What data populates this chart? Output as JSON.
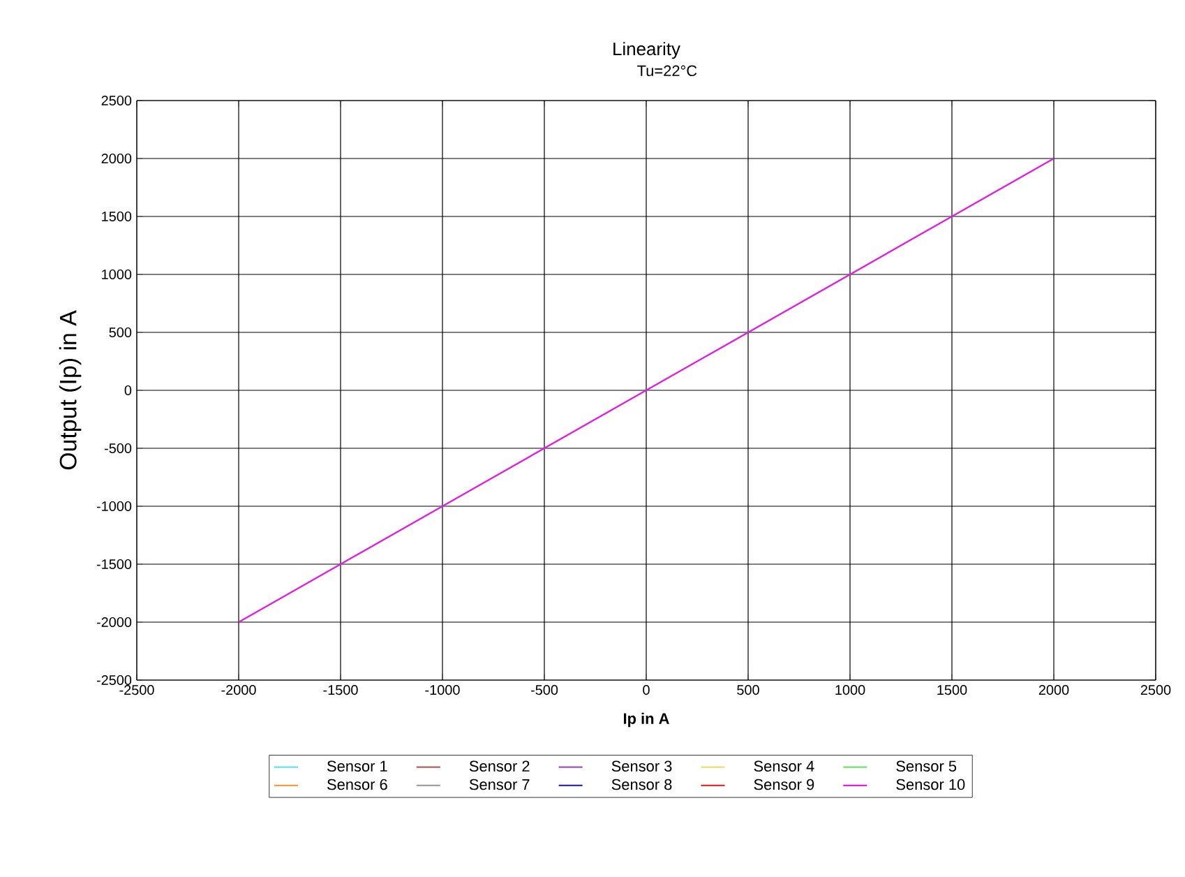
{
  "chart_data": {
    "type": "line",
    "title": "Linearity",
    "subtitle": "Tu=22°C",
    "xlabel": "Ip in A",
    "ylabel": "Output (Ip) in A",
    "x": [
      -2000,
      -1500,
      -1000,
      -500,
      0,
      500,
      1000,
      1500,
      2000
    ],
    "xlim": [
      -2500,
      2500
    ],
    "xticks": [
      -2500,
      -2000,
      -1500,
      -1000,
      -500,
      0,
      500,
      1000,
      1500,
      2000,
      2500
    ],
    "ylim": [
      -2500,
      2500
    ],
    "yticks": [
      -2500,
      -2000,
      -1500,
      -1000,
      -500,
      0,
      500,
      1000,
      1500,
      2000,
      2500
    ],
    "grid": true,
    "legend": "bottom",
    "series": [
      {
        "name": "Sensor 1",
        "color": "#66e0f0",
        "values": [
          null,
          null,
          null,
          null,
          null,
          null,
          null,
          null,
          null
        ]
      },
      {
        "name": "Sensor 2",
        "color": "#b06060",
        "values": [
          null,
          null,
          null,
          null,
          null,
          null,
          null,
          null,
          null
        ]
      },
      {
        "name": "Sensor 3",
        "color": "#a050c0",
        "values": [
          null,
          null,
          null,
          null,
          null,
          null,
          null,
          null,
          null
        ]
      },
      {
        "name": "Sensor 4",
        "color": "#e8e070",
        "values": [
          null,
          null,
          null,
          null,
          null,
          null,
          null,
          null,
          null
        ]
      },
      {
        "name": "Sensor 5",
        "color": "#70e070",
        "values": [
          null,
          null,
          null,
          null,
          null,
          null,
          null,
          null,
          null
        ]
      },
      {
        "name": "Sensor 6",
        "color": "#f0a040",
        "values": [
          null,
          null,
          null,
          null,
          null,
          null,
          null,
          null,
          null
        ]
      },
      {
        "name": "Sensor 7",
        "color": "#a0a0a0",
        "values": [
          null,
          null,
          null,
          null,
          null,
          null,
          null,
          null,
          null
        ]
      },
      {
        "name": "Sensor 8",
        "color": "#3030a0",
        "values": [
          null,
          null,
          null,
          null,
          null,
          null,
          null,
          null,
          null
        ]
      },
      {
        "name": "Sensor 9",
        "color": "#e03030",
        "values": [
          null,
          null,
          null,
          null,
          null,
          null,
          null,
          null,
          null
        ]
      },
      {
        "name": "Sensor 10",
        "color": "#e020e0",
        "values": [
          -2000,
          -1500,
          -1000,
          -500,
          0,
          500,
          1000,
          1500,
          2000
        ]
      }
    ]
  }
}
